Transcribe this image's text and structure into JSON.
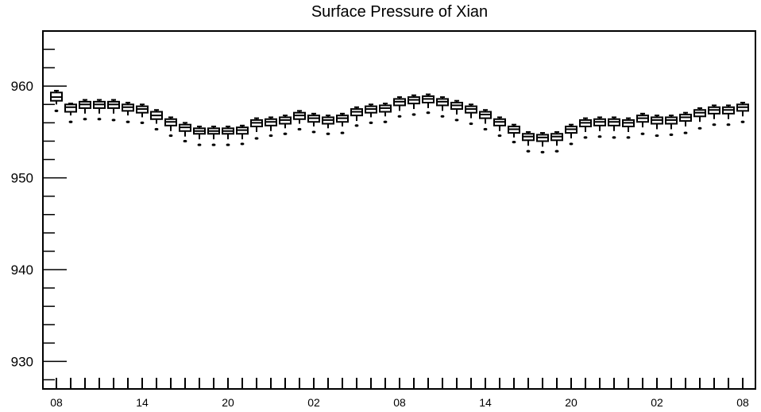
{
  "chart_data": {
    "type": "box",
    "title": "Surface Pressure of Xian",
    "xlabel": "",
    "ylabel": "",
    "ylim": [
      927,
      966
    ],
    "yticks": [
      930,
      940,
      950,
      960
    ],
    "xtick_labels": [
      "08",
      "14",
      "20",
      "02",
      "08",
      "14",
      "20",
      "02",
      "08"
    ],
    "x_hours": [
      0,
      6,
      12,
      18,
      24,
      30,
      36,
      42,
      48
    ],
    "grid": false,
    "legend": "none",
    "colors": {
      "box": "#000000",
      "background": "#ffffff"
    },
    "boxes": [
      {
        "hour": 0,
        "median": 958.8,
        "q1": 958.4,
        "q3": 959.3,
        "low": 958.0,
        "high": 959.5,
        "outlier": 957.3
      },
      {
        "hour": 1,
        "median": 957.7,
        "q1": 957.2,
        "q3": 958.0,
        "low": 956.8,
        "high": 958.1,
        "outlier": 956.1
      },
      {
        "hour": 2,
        "median": 958.0,
        "q1": 957.6,
        "q3": 958.3,
        "low": 957.0,
        "high": 958.5,
        "outlier": 956.4
      },
      {
        "hour": 3,
        "median": 958.0,
        "q1": 957.6,
        "q3": 958.3,
        "low": 957.0,
        "high": 958.5,
        "outlier": 956.4
      },
      {
        "hour": 4,
        "median": 958.0,
        "q1": 957.6,
        "q3": 958.3,
        "low": 957.0,
        "high": 958.5,
        "outlier": 956.3
      },
      {
        "hour": 5,
        "median": 957.7,
        "q1": 957.3,
        "q3": 958.0,
        "low": 956.8,
        "high": 958.2,
        "outlier": 956.1
      },
      {
        "hour": 6,
        "median": 957.5,
        "q1": 957.1,
        "q3": 957.8,
        "low": 956.6,
        "high": 958.0,
        "outlier": 956.0
      },
      {
        "hour": 7,
        "median": 956.8,
        "q1": 956.4,
        "q3": 957.2,
        "low": 955.9,
        "high": 957.4,
        "outlier": 955.3
      },
      {
        "hour": 8,
        "median": 956.1,
        "q1": 955.7,
        "q3": 956.4,
        "low": 955.1,
        "high": 956.6,
        "outlier": 954.6
      },
      {
        "hour": 9,
        "median": 955.5,
        "q1": 955.1,
        "q3": 955.8,
        "low": 954.5,
        "high": 956.0,
        "outlier": 954.0
      },
      {
        "hour": 10,
        "median": 955.1,
        "q1": 954.8,
        "q3": 955.4,
        "low": 954.2,
        "high": 955.6,
        "outlier": 953.6
      },
      {
        "hour": 11,
        "median": 955.1,
        "q1": 954.8,
        "q3": 955.4,
        "low": 954.2,
        "high": 955.6,
        "outlier": 953.6
      },
      {
        "hour": 12,
        "median": 955.1,
        "q1": 954.8,
        "q3": 955.4,
        "low": 954.2,
        "high": 955.6,
        "outlier": 953.6
      },
      {
        "hour": 13,
        "median": 955.2,
        "q1": 954.8,
        "q3": 955.5,
        "low": 954.2,
        "high": 955.7,
        "outlier": 953.7
      },
      {
        "hour": 14,
        "median": 956.0,
        "q1": 955.6,
        "q3": 956.3,
        "low": 955.0,
        "high": 956.5,
        "outlier": 954.3
      },
      {
        "hour": 15,
        "median": 956.1,
        "q1": 955.7,
        "q3": 956.4,
        "low": 955.1,
        "high": 956.6,
        "outlier": 954.6
      },
      {
        "hour": 16,
        "median": 956.3,
        "q1": 955.9,
        "q3": 956.6,
        "low": 955.4,
        "high": 956.8,
        "outlier": 954.8
      },
      {
        "hour": 17,
        "median": 956.8,
        "q1": 956.4,
        "q3": 957.1,
        "low": 955.9,
        "high": 957.3,
        "outlier": 955.3
      },
      {
        "hour": 18,
        "median": 956.5,
        "q1": 956.1,
        "q3": 956.8,
        "low": 955.6,
        "high": 957.0,
        "outlier": 955.0
      },
      {
        "hour": 19,
        "median": 956.3,
        "q1": 955.9,
        "q3": 956.6,
        "low": 955.4,
        "high": 956.8,
        "outlier": 954.8
      },
      {
        "hour": 20,
        "median": 956.5,
        "q1": 956.1,
        "q3": 956.8,
        "low": 955.6,
        "high": 957.0,
        "outlier": 954.9
      },
      {
        "hour": 21,
        "median": 957.2,
        "q1": 956.8,
        "q3": 957.5,
        "low": 956.2,
        "high": 957.7,
        "outlier": 955.7
      },
      {
        "hour": 22,
        "median": 957.5,
        "q1": 957.1,
        "q3": 957.8,
        "low": 956.6,
        "high": 958.0,
        "outlier": 956.0
      },
      {
        "hour": 23,
        "median": 957.6,
        "q1": 957.2,
        "q3": 957.9,
        "low": 956.7,
        "high": 958.1,
        "outlier": 956.1
      },
      {
        "hour": 24,
        "median": 958.3,
        "q1": 957.9,
        "q3": 958.6,
        "low": 957.3,
        "high": 958.8,
        "outlier": 956.7
      },
      {
        "hour": 25,
        "median": 958.5,
        "q1": 958.1,
        "q3": 958.8,
        "low": 957.5,
        "high": 959.0,
        "outlier": 956.9
      },
      {
        "hour": 26,
        "median": 958.6,
        "q1": 958.2,
        "q3": 958.9,
        "low": 957.6,
        "high": 959.1,
        "outlier": 957.1
      },
      {
        "hour": 27,
        "median": 958.3,
        "q1": 957.9,
        "q3": 958.6,
        "low": 957.3,
        "high": 958.8,
        "outlier": 956.7
      },
      {
        "hour": 28,
        "median": 957.9,
        "q1": 957.5,
        "q3": 958.2,
        "low": 956.9,
        "high": 958.4,
        "outlier": 956.3
      },
      {
        "hour": 29,
        "median": 957.5,
        "q1": 957.1,
        "q3": 957.8,
        "low": 956.5,
        "high": 958.0,
        "outlier": 955.9
      },
      {
        "hour": 30,
        "median": 956.9,
        "q1": 956.5,
        "q3": 957.2,
        "low": 955.9,
        "high": 957.4,
        "outlier": 955.3
      },
      {
        "hour": 31,
        "median": 956.1,
        "q1": 955.7,
        "q3": 956.4,
        "low": 955.1,
        "high": 956.6,
        "outlier": 954.6
      },
      {
        "hour": 32,
        "median": 955.3,
        "q1": 954.9,
        "q3": 955.6,
        "low": 954.4,
        "high": 955.8,
        "outlier": 953.9
      },
      {
        "hour": 33,
        "median": 954.5,
        "q1": 954.1,
        "q3": 954.8,
        "low": 953.5,
        "high": 955.0,
        "outlier": 952.9
      },
      {
        "hour": 34,
        "median": 954.4,
        "q1": 954.0,
        "q3": 954.7,
        "low": 953.4,
        "high": 954.9,
        "outlier": 952.8
      },
      {
        "hour": 35,
        "median": 954.5,
        "q1": 954.1,
        "q3": 954.8,
        "low": 953.5,
        "high": 955.0,
        "outlier": 952.9
      },
      {
        "hour": 36,
        "median": 955.3,
        "q1": 954.9,
        "q3": 955.6,
        "low": 954.3,
        "high": 955.8,
        "outlier": 953.7
      },
      {
        "hour": 37,
        "median": 956.0,
        "q1": 955.6,
        "q3": 956.3,
        "low": 955.0,
        "high": 956.5,
        "outlier": 954.4
      },
      {
        "hour": 38,
        "median": 956.1,
        "q1": 955.7,
        "q3": 956.4,
        "low": 955.1,
        "high": 956.6,
        "outlier": 954.5
      },
      {
        "hour": 39,
        "median": 956.1,
        "q1": 955.7,
        "q3": 956.4,
        "low": 955.1,
        "high": 956.6,
        "outlier": 954.4
      },
      {
        "hour": 40,
        "median": 956.0,
        "q1": 955.6,
        "q3": 956.3,
        "low": 955.0,
        "high": 956.5,
        "outlier": 954.4
      },
      {
        "hour": 41,
        "median": 956.5,
        "q1": 956.1,
        "q3": 956.8,
        "low": 955.5,
        "high": 957.0,
        "outlier": 954.8
      },
      {
        "hour": 42,
        "median": 956.3,
        "q1": 955.9,
        "q3": 956.6,
        "low": 955.3,
        "high": 956.8,
        "outlier": 954.6
      },
      {
        "hour": 43,
        "median": 956.3,
        "q1": 955.9,
        "q3": 956.6,
        "low": 955.3,
        "high": 956.8,
        "outlier": 954.7
      },
      {
        "hour": 44,
        "median": 956.6,
        "q1": 956.2,
        "q3": 956.9,
        "low": 955.6,
        "high": 957.1,
        "outlier": 954.9
      },
      {
        "hour": 45,
        "median": 957.1,
        "q1": 956.7,
        "q3": 957.4,
        "low": 956.1,
        "high": 957.6,
        "outlier": 955.4
      },
      {
        "hour": 46,
        "median": 957.4,
        "q1": 957.0,
        "q3": 957.7,
        "low": 956.4,
        "high": 957.9,
        "outlier": 955.8
      },
      {
        "hour": 47,
        "median": 957.4,
        "q1": 957.0,
        "q3": 957.7,
        "low": 956.4,
        "high": 957.9,
        "outlier": 955.8
      },
      {
        "hour": 48,
        "median": 957.7,
        "q1": 957.3,
        "q3": 958.0,
        "low": 956.7,
        "high": 958.2,
        "outlier": 956.1
      }
    ]
  }
}
